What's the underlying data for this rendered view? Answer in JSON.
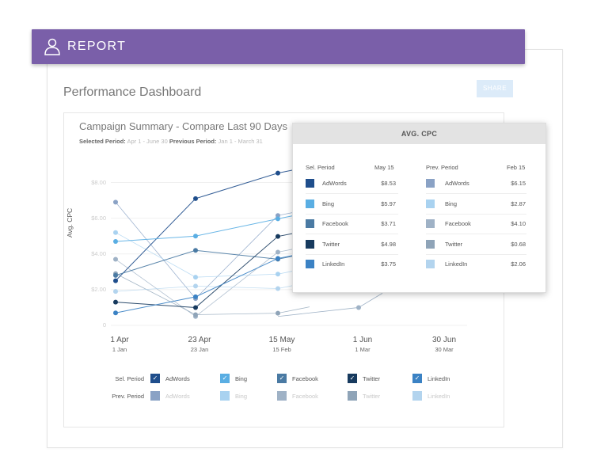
{
  "banner": {
    "title": "REPORT",
    "icon": "person-icon"
  },
  "page": {
    "title": "Performance Dashboard",
    "share_label": "SHARE"
  },
  "summary": {
    "title": "Campaign Summary - Compare Last 90 Days",
    "selected_label": "Selected Period:",
    "selected_value": "Apr 1 - June 30",
    "previous_label": "Previous Period:",
    "previous_value": "Jan 1 - March 31"
  },
  "chart_data": {
    "type": "line",
    "ylabel": "Avg. CPC",
    "y_ticks": [
      "0",
      "$2.00",
      "$4.00",
      "$6.00",
      "$8.00"
    ],
    "ylim": [
      0,
      9
    ],
    "x_ticks": [
      {
        "main": "1 Apr",
        "sub": "1 Jan"
      },
      {
        "main": "23 Apr",
        "sub": "23 Jan"
      },
      {
        "main": "15 May",
        "sub": "15 Feb"
      },
      {
        "main": "1 Jun",
        "sub": "1 Mar"
      },
      {
        "main": "30 Jun",
        "sub": "30 Mar"
      }
    ],
    "series": [
      {
        "name": "AdWords",
        "period": "selected",
        "color": "#1f4e8c",
        "values": [
          2.5,
          7.1,
          8.53
        ]
      },
      {
        "name": "Bing",
        "period": "selected",
        "color": "#5aaee3",
        "values": [
          4.7,
          5.0,
          5.97
        ]
      },
      {
        "name": "Facebook",
        "period": "selected",
        "color": "#4a7aa3",
        "values": [
          2.8,
          4.2,
          3.71
        ]
      },
      {
        "name": "Twitter",
        "period": "selected",
        "color": "#173a5e",
        "values": [
          1.3,
          1.0,
          4.98
        ]
      },
      {
        "name": "LinkedIn",
        "period": "selected",
        "color": "#3b82c4",
        "values": [
          0.7,
          1.6,
          3.75
        ]
      },
      {
        "name": "AdWords",
        "period": "previous",
        "color": "#8aa2c5",
        "values": [
          6.9,
          1.5,
          6.15
        ]
      },
      {
        "name": "Bing",
        "period": "previous",
        "color": "#a9d2f0",
        "values": [
          5.2,
          2.7,
          2.87
        ]
      },
      {
        "name": "Facebook",
        "period": "previous",
        "color": "#9fb2c6",
        "values": [
          3.7,
          0.5,
          4.1
        ]
      },
      {
        "name": "Twitter",
        "period": "previous",
        "color": "#8fa4b8",
        "values": [
          2.9,
          0.6,
          0.68
        ]
      },
      {
        "name": "LinkedIn",
        "period": "previous",
        "color": "#b3d4ee",
        "values": [
          1.9,
          2.2,
          2.06
        ]
      }
    ],
    "extra_previous_point": {
      "value": 1.0
    }
  },
  "legend": {
    "sel_label": "Sel. Period",
    "prev_label": "Prev. Period",
    "checkmark": "✓",
    "items": [
      {
        "name": "AdWords",
        "sel_color": "#1f4e8c",
        "prev_color": "#8aa2c5"
      },
      {
        "name": "Bing",
        "sel_color": "#5aaee3",
        "prev_color": "#a9d2f0"
      },
      {
        "name": "Facebook",
        "sel_color": "#4a7aa3",
        "prev_color": "#9fb2c6"
      },
      {
        "name": "Twitter",
        "sel_color": "#173a5e",
        "prev_color": "#8fa4b8"
      },
      {
        "name": "LinkedIn",
        "sel_color": "#3b82c4",
        "prev_color": "#b3d4ee"
      }
    ]
  },
  "tooltip": {
    "title": "AVG. CPC",
    "sel_header": "Sel. Period",
    "sel_date": "May 15",
    "prev_header": "Prev. Period",
    "prev_date": "Feb 15",
    "rows": [
      {
        "name": "AdWords",
        "sel_value": "$8.53",
        "prev_value": "$6.15",
        "sel_color": "#1f4e8c",
        "prev_color": "#8aa2c5"
      },
      {
        "name": "Bing",
        "sel_value": "$5.97",
        "prev_value": "$2.87",
        "sel_color": "#5aaee3",
        "prev_color": "#a9d2f0"
      },
      {
        "name": "Facebook",
        "sel_value": "$3.71",
        "prev_value": "$4.10",
        "sel_color": "#4a7aa3",
        "prev_color": "#9fb2c6"
      },
      {
        "name": "Twitter",
        "sel_value": "$4.98",
        "prev_value": "$0.68",
        "sel_color": "#173a5e",
        "prev_color": "#8fa4b8"
      },
      {
        "name": "LinkedIn",
        "sel_value": "$3.75",
        "prev_value": "$2.06",
        "sel_color": "#3b82c4",
        "prev_color": "#b3d4ee"
      }
    ]
  }
}
